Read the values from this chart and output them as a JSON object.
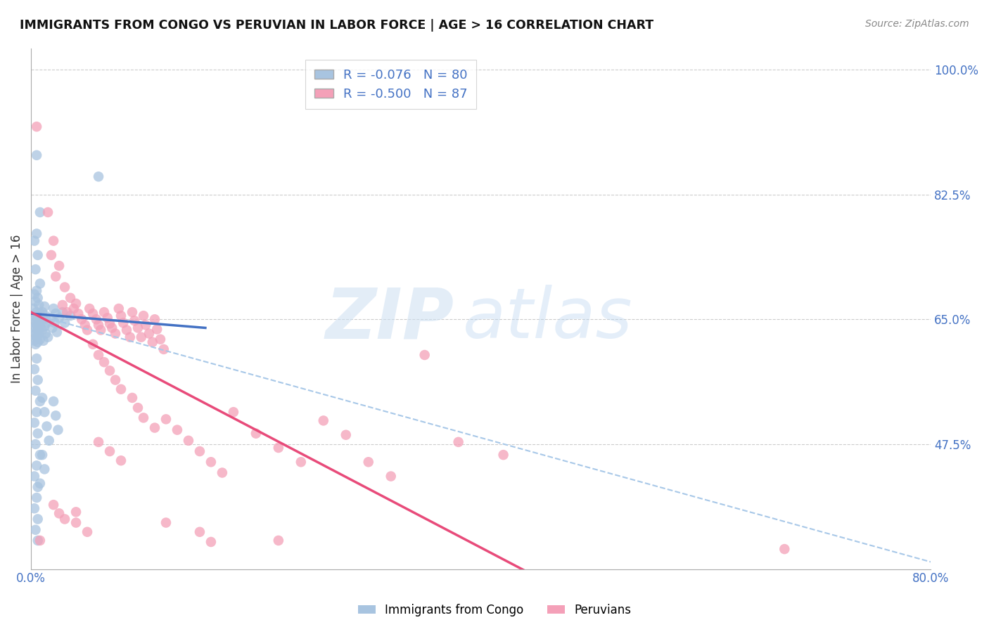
{
  "title": "IMMIGRANTS FROM CONGO VS PERUVIAN IN LABOR FORCE | AGE > 16 CORRELATION CHART",
  "source": "Source: ZipAtlas.com",
  "ylabel": "In Labor Force | Age > 16",
  "xlim": [
    0.0,
    0.8
  ],
  "ylim": [
    0.3,
    1.03
  ],
  "right_yticks": [
    0.475,
    0.65,
    0.825,
    1.0
  ],
  "right_yticklabels": [
    "47.5%",
    "65.0%",
    "82.5%",
    "100.0%"
  ],
  "xtick_vals": [
    0.0,
    0.2,
    0.4,
    0.6,
    0.8
  ],
  "xticklabels": [
    "0.0%",
    "",
    "",
    "",
    "80.0%"
  ],
  "blue_R": -0.076,
  "blue_N": 80,
  "pink_R": -0.5,
  "pink_N": 87,
  "blue_color": "#a8c4e0",
  "pink_color": "#f4a0b8",
  "blue_line_color": "#4472c4",
  "pink_line_color": "#e84b7a",
  "dashed_line_color": "#a8c8e8",
  "legend_blue_label": "Immigrants from Congo",
  "legend_pink_label": "Peruvians",
  "blue_scatter": [
    [
      0.005,
      0.88
    ],
    [
      0.008,
      0.8
    ],
    [
      0.005,
      0.77
    ],
    [
      0.003,
      0.76
    ],
    [
      0.006,
      0.74
    ],
    [
      0.004,
      0.72
    ],
    [
      0.008,
      0.7
    ],
    [
      0.005,
      0.69
    ],
    [
      0.003,
      0.685
    ],
    [
      0.006,
      0.68
    ],
    [
      0.004,
      0.675
    ],
    [
      0.007,
      0.67
    ],
    [
      0.002,
      0.665
    ],
    [
      0.005,
      0.66
    ],
    [
      0.008,
      0.658
    ],
    [
      0.003,
      0.655
    ],
    [
      0.006,
      0.652
    ],
    [
      0.004,
      0.65
    ],
    [
      0.007,
      0.648
    ],
    [
      0.002,
      0.645
    ],
    [
      0.005,
      0.642
    ],
    [
      0.008,
      0.64
    ],
    [
      0.003,
      0.638
    ],
    [
      0.006,
      0.635
    ],
    [
      0.004,
      0.632
    ],
    [
      0.007,
      0.63
    ],
    [
      0.002,
      0.628
    ],
    [
      0.005,
      0.625
    ],
    [
      0.008,
      0.622
    ],
    [
      0.003,
      0.62
    ],
    [
      0.006,
      0.618
    ],
    [
      0.004,
      0.615
    ],
    [
      0.012,
      0.668
    ],
    [
      0.01,
      0.66
    ],
    [
      0.013,
      0.655
    ],
    [
      0.011,
      0.65
    ],
    [
      0.014,
      0.645
    ],
    [
      0.012,
      0.64
    ],
    [
      0.01,
      0.635
    ],
    [
      0.013,
      0.63
    ],
    [
      0.015,
      0.625
    ],
    [
      0.011,
      0.62
    ],
    [
      0.02,
      0.665
    ],
    [
      0.022,
      0.658
    ],
    [
      0.018,
      0.652
    ],
    [
      0.021,
      0.645
    ],
    [
      0.019,
      0.638
    ],
    [
      0.023,
      0.632
    ],
    [
      0.028,
      0.66
    ],
    [
      0.025,
      0.652
    ],
    [
      0.03,
      0.645
    ],
    [
      0.035,
      0.655
    ],
    [
      0.06,
      0.85
    ],
    [
      0.005,
      0.595
    ],
    [
      0.003,
      0.58
    ],
    [
      0.006,
      0.565
    ],
    [
      0.004,
      0.55
    ],
    [
      0.008,
      0.535
    ],
    [
      0.005,
      0.52
    ],
    [
      0.003,
      0.505
    ],
    [
      0.006,
      0.49
    ],
    [
      0.004,
      0.475
    ],
    [
      0.008,
      0.46
    ],
    [
      0.005,
      0.445
    ],
    [
      0.003,
      0.43
    ],
    [
      0.006,
      0.415
    ],
    [
      0.01,
      0.54
    ],
    [
      0.012,
      0.52
    ],
    [
      0.014,
      0.5
    ],
    [
      0.016,
      0.48
    ],
    [
      0.02,
      0.535
    ],
    [
      0.022,
      0.515
    ],
    [
      0.024,
      0.495
    ],
    [
      0.005,
      0.4
    ],
    [
      0.003,
      0.385
    ],
    [
      0.006,
      0.37
    ],
    [
      0.01,
      0.46
    ],
    [
      0.012,
      0.44
    ],
    [
      0.008,
      0.42
    ],
    [
      0.004,
      0.355
    ],
    [
      0.006,
      0.34
    ]
  ],
  "pink_scatter": [
    [
      0.005,
      0.92
    ],
    [
      0.015,
      0.8
    ],
    [
      0.02,
      0.76
    ],
    [
      0.018,
      0.74
    ],
    [
      0.025,
      0.725
    ],
    [
      0.022,
      0.71
    ],
    [
      0.03,
      0.695
    ],
    [
      0.035,
      0.68
    ],
    [
      0.028,
      0.67
    ],
    [
      0.032,
      0.66
    ],
    [
      0.04,
      0.672
    ],
    [
      0.038,
      0.665
    ],
    [
      0.042,
      0.658
    ],
    [
      0.045,
      0.65
    ],
    [
      0.048,
      0.642
    ],
    [
      0.05,
      0.635
    ],
    [
      0.052,
      0.665
    ],
    [
      0.055,
      0.658
    ],
    [
      0.058,
      0.65
    ],
    [
      0.06,
      0.642
    ],
    [
      0.062,
      0.635
    ],
    [
      0.065,
      0.66
    ],
    [
      0.068,
      0.652
    ],
    [
      0.07,
      0.644
    ],
    [
      0.072,
      0.638
    ],
    [
      0.075,
      0.63
    ],
    [
      0.078,
      0.665
    ],
    [
      0.08,
      0.655
    ],
    [
      0.082,
      0.645
    ],
    [
      0.085,
      0.635
    ],
    [
      0.088,
      0.625
    ],
    [
      0.09,
      0.66
    ],
    [
      0.092,
      0.648
    ],
    [
      0.095,
      0.638
    ],
    [
      0.098,
      0.625
    ],
    [
      0.1,
      0.655
    ],
    [
      0.102,
      0.642
    ],
    [
      0.105,
      0.63
    ],
    [
      0.108,
      0.618
    ],
    [
      0.11,
      0.65
    ],
    [
      0.112,
      0.636
    ],
    [
      0.115,
      0.622
    ],
    [
      0.118,
      0.608
    ],
    [
      0.055,
      0.615
    ],
    [
      0.06,
      0.6
    ],
    [
      0.065,
      0.59
    ],
    [
      0.07,
      0.578
    ],
    [
      0.075,
      0.565
    ],
    [
      0.08,
      0.552
    ],
    [
      0.09,
      0.54
    ],
    [
      0.095,
      0.526
    ],
    [
      0.1,
      0.512
    ],
    [
      0.11,
      0.498
    ],
    [
      0.12,
      0.51
    ],
    [
      0.13,
      0.495
    ],
    [
      0.14,
      0.48
    ],
    [
      0.15,
      0.465
    ],
    [
      0.16,
      0.45
    ],
    [
      0.17,
      0.435
    ],
    [
      0.18,
      0.52
    ],
    [
      0.2,
      0.49
    ],
    [
      0.22,
      0.47
    ],
    [
      0.24,
      0.45
    ],
    [
      0.26,
      0.508
    ],
    [
      0.28,
      0.488
    ],
    [
      0.3,
      0.45
    ],
    [
      0.32,
      0.43
    ],
    [
      0.35,
      0.6
    ],
    [
      0.38,
      0.478
    ],
    [
      0.42,
      0.46
    ],
    [
      0.02,
      0.39
    ],
    [
      0.025,
      0.378
    ],
    [
      0.03,
      0.37
    ],
    [
      0.04,
      0.38
    ],
    [
      0.04,
      0.365
    ],
    [
      0.05,
      0.352
    ],
    [
      0.06,
      0.478
    ],
    [
      0.07,
      0.465
    ],
    [
      0.08,
      0.452
    ],
    [
      0.12,
      0.365
    ],
    [
      0.15,
      0.352
    ],
    [
      0.16,
      0.338
    ],
    [
      0.22,
      0.34
    ],
    [
      0.67,
      0.328
    ],
    [
      0.008,
      0.34
    ]
  ],
  "blue_line_x": [
    0.0,
    0.155
  ],
  "blue_line_y_start": 0.658,
  "blue_line_y_end": 0.638,
  "pink_line_x": [
    0.0,
    0.8
  ],
  "pink_line_y_start": 0.66,
  "pink_line_y_end": 0.0,
  "dash_line_x": [
    0.0,
    0.8
  ],
  "dash_line_y_start": 0.658,
  "dash_line_y_end": 0.31,
  "figsize": [
    14.06,
    8.92
  ],
  "dpi": 100
}
